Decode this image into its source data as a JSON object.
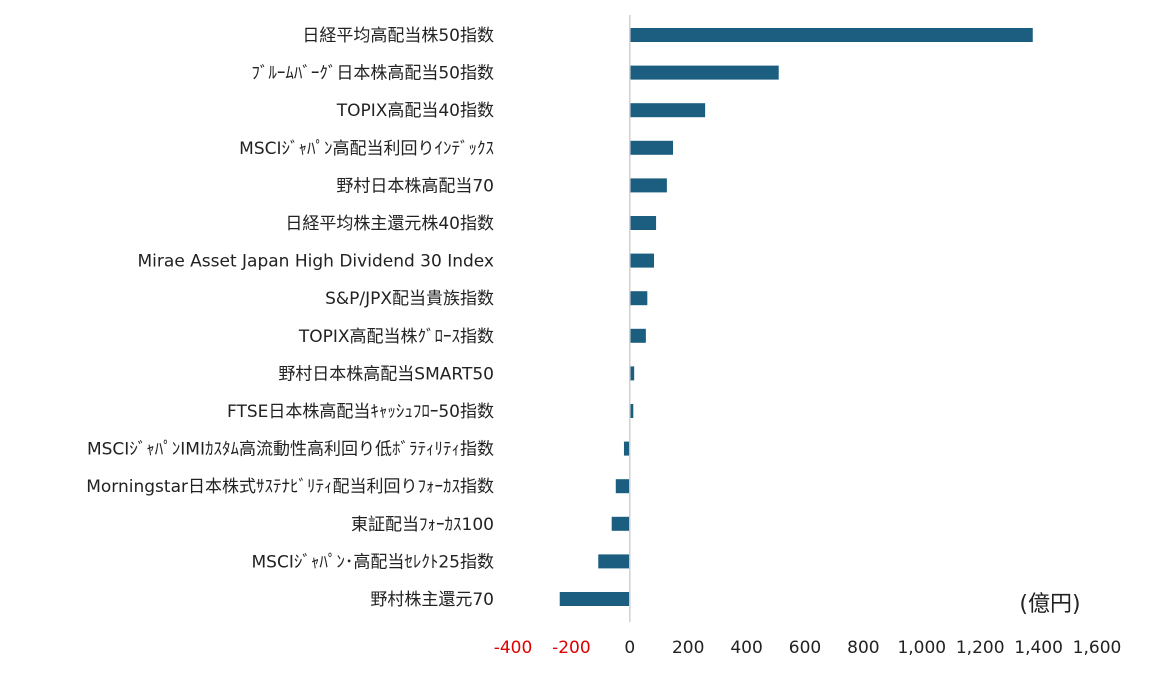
{
  "chart_data": {
    "type": "bar",
    "orientation": "horizontal",
    "unit": "(億円)",
    "categories": [
      "日経平均高配当株50指数",
      "ﾌﾞﾙｰﾑﾊﾞｰｸﾞ日本株高配当50指数",
      "TOPIX高配当40指数",
      "MSCIｼﾞｬﾊﾟﾝ高配当利回りｲﾝﾃﾞｯｸｽ",
      "野村日本株高配当70",
      "日経平均株主還元株40指数",
      "Mirae Asset Japan High Dividend 30 Index",
      "S&P/JPX配当貴族指数",
      "TOPIX高配当株ｸﾞﾛｰｽ指数",
      "野村日本株高配当SMART50",
      "FTSE日本株高配当ｷｬｯｼｭﾌﾛｰ50指数",
      "MSCIｼﾞｬﾊﾟﾝIMIｶｽﾀﾑ高流動性高利回り低ﾎﾞﾗﾃｨﾘﾃｨ指数",
      "Morningstar日本株式ｻｽﾃﾅﾋﾞﾘﾃｨ配当利回りﾌｫｰｶｽ指数",
      "東証配当ﾌｫｰｶｽ100",
      "MSCIｼﾞｬﾊﾟﾝ･高配当ｾﾚｸﾄ25指数",
      "野村株主還元70"
    ],
    "values": [
      1380,
      510,
      258,
      148,
      127,
      90,
      83,
      60,
      55,
      15,
      12,
      -20,
      -48,
      -62,
      -108,
      -240
    ],
    "xlim": [
      -400,
      1600
    ],
    "xticks": [
      -400,
      -200,
      0,
      200,
      400,
      600,
      800,
      1000,
      1200,
      1400,
      1600
    ],
    "xtick_labels": [
      "-400",
      "-200",
      "0",
      "200",
      "400",
      "600",
      "800",
      "1,000",
      "1,200",
      "1,400",
      "1,600"
    ],
    "negative_tick_color": "#e00000",
    "bar_color": "#1b5e80",
    "axis_color": "#d0d0d0",
    "grid": false,
    "legend": "none"
  }
}
